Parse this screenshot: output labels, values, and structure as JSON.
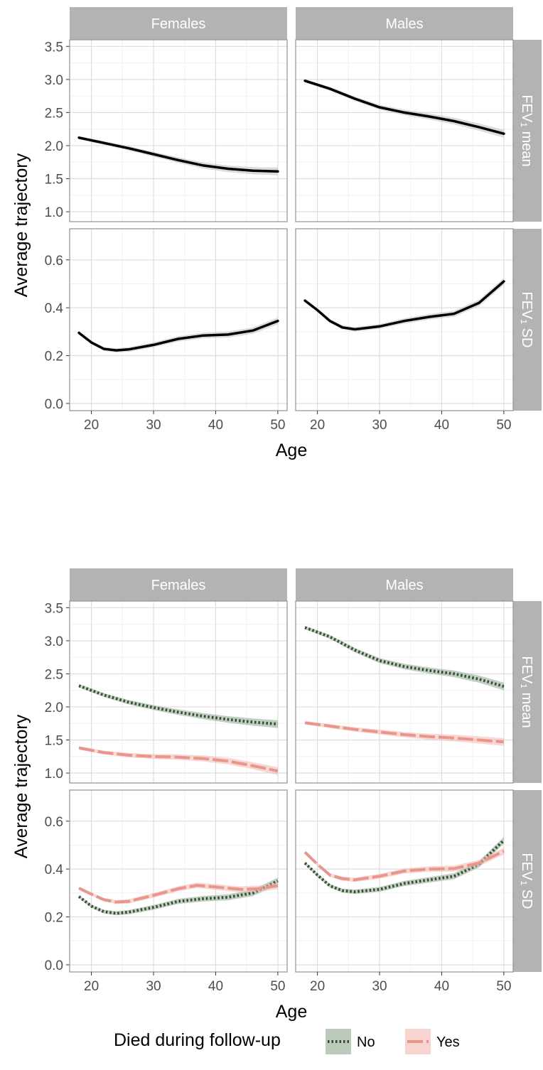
{
  "chart_data": [
    {
      "type": "line",
      "facet_columns": [
        "Females",
        "Males"
      ],
      "facet_rows": [
        "FEV₁ mean",
        "FEV₁ SD"
      ],
      "xlabel": "Age",
      "ylabel": "Average trajectory",
      "x_ticks": [
        20,
        30,
        40,
        50
      ],
      "xlim": [
        16.5,
        51.5
      ],
      "rows": [
        {
          "label": "FEV₁ mean",
          "ylim": [
            0.85,
            3.6
          ],
          "y_ticks": [
            1.0,
            1.5,
            2.0,
            2.5,
            3.0,
            3.5
          ],
          "y_tick_labels": [
            "1.0",
            "1.5",
            "2.0",
            "2.5",
            "3.0",
            "3.5"
          ]
        },
        {
          "label": "FEV₁ SD",
          "ylim": [
            -0.03,
            0.73
          ],
          "y_ticks": [
            0.0,
            0.2,
            0.4,
            0.6
          ],
          "y_tick_labels": [
            "0.0",
            "0.2",
            "0.4",
            "0.6"
          ]
        }
      ],
      "panels": [
        {
          "col": 0,
          "row": 0,
          "series": [
            {
              "style": "solid",
              "color": "#000000",
              "points": [
                [
                  18,
                  2.12
                ],
                [
                  22,
                  2.04
                ],
                [
                  26,
                  1.96
                ],
                [
                  30,
                  1.87
                ],
                [
                  34,
                  1.78
                ],
                [
                  38,
                  1.7
                ],
                [
                  42,
                  1.65
                ],
                [
                  46,
                  1.62
                ],
                [
                  50,
                  1.61
                ]
              ]
            }
          ]
        },
        {
          "col": 1,
          "row": 0,
          "series": [
            {
              "style": "solid",
              "color": "#000000",
              "points": [
                [
                  18,
                  2.98
                ],
                [
                  22,
                  2.86
                ],
                [
                  26,
                  2.71
                ],
                [
                  30,
                  2.58
                ],
                [
                  34,
                  2.5
                ],
                [
                  38,
                  2.44
                ],
                [
                  42,
                  2.37
                ],
                [
                  46,
                  2.28
                ],
                [
                  50,
                  2.18
                ]
              ]
            }
          ]
        },
        {
          "col": 0,
          "row": 1,
          "series": [
            {
              "style": "solid",
              "color": "#000000",
              "points": [
                [
                  18,
                  0.295
                ],
                [
                  20,
                  0.255
                ],
                [
                  22,
                  0.228
                ],
                [
                  24,
                  0.222
                ],
                [
                  26,
                  0.226
                ],
                [
                  30,
                  0.245
                ],
                [
                  34,
                  0.27
                ],
                [
                  38,
                  0.284
                ],
                [
                  42,
                  0.288
                ],
                [
                  46,
                  0.305
                ],
                [
                  50,
                  0.345
                ]
              ]
            }
          ]
        },
        {
          "col": 1,
          "row": 1,
          "series": [
            {
              "style": "solid",
              "color": "#000000",
              "points": [
                [
                  18,
                  0.43
                ],
                [
                  20,
                  0.39
                ],
                [
                  22,
                  0.345
                ],
                [
                  24,
                  0.318
                ],
                [
                  26,
                  0.31
                ],
                [
                  30,
                  0.322
                ],
                [
                  34,
                  0.345
                ],
                [
                  38,
                  0.362
                ],
                [
                  42,
                  0.375
                ],
                [
                  46,
                  0.42
                ],
                [
                  50,
                  0.51
                ]
              ]
            }
          ]
        }
      ]
    },
    {
      "type": "line",
      "facet_columns": [
        "Females",
        "Males"
      ],
      "facet_rows": [
        "FEV₁ mean",
        "FEV₁ SD"
      ],
      "xlabel": "Age",
      "ylabel": "Average trajectory",
      "x_ticks": [
        20,
        30,
        40,
        50
      ],
      "xlim": [
        16.5,
        51.5
      ],
      "legend": {
        "title": "Died during follow-up",
        "position": "bottom"
      },
      "rows": [
        {
          "label": "FEV₁ mean",
          "ylim": [
            0.85,
            3.6
          ],
          "y_ticks": [
            1.0,
            1.5,
            2.0,
            2.5,
            3.0,
            3.5
          ],
          "y_tick_labels": [
            "1.0",
            "1.5",
            "2.0",
            "2.5",
            "3.0",
            "3.5"
          ]
        },
        {
          "label": "FEV₁ SD",
          "ylim": [
            -0.03,
            0.73
          ],
          "y_ticks": [
            0.0,
            0.2,
            0.4,
            0.6
          ],
          "y_tick_labels": [
            "0.0",
            "0.2",
            "0.4",
            "0.6"
          ]
        }
      ],
      "series_styles": [
        {
          "name": "No",
          "style": "dotted",
          "color": "#2f4f2f",
          "band_color": "#8fa68f"
        },
        {
          "name": "Yes",
          "style": "longdash",
          "color": "#e8968c",
          "band_color": "#f2b8b0"
        }
      ],
      "panels": [
        {
          "col": 0,
          "row": 0,
          "series": [
            {
              "name": "No",
              "points": [
                [
                  18,
                  2.32
                ],
                [
                  22,
                  2.18
                ],
                [
                  26,
                  2.07
                ],
                [
                  30,
                  1.99
                ],
                [
                  34,
                  1.92
                ],
                [
                  38,
                  1.86
                ],
                [
                  42,
                  1.81
                ],
                [
                  46,
                  1.77
                ],
                [
                  50,
                  1.74
                ]
              ]
            },
            {
              "name": "Yes",
              "points": [
                [
                  18,
                  1.38
                ],
                [
                  22,
                  1.31
                ],
                [
                  26,
                  1.27
                ],
                [
                  30,
                  1.25
                ],
                [
                  34,
                  1.24
                ],
                [
                  38,
                  1.22
                ],
                [
                  42,
                  1.18
                ],
                [
                  46,
                  1.11
                ],
                [
                  50,
                  1.03
                ]
              ]
            }
          ]
        },
        {
          "col": 1,
          "row": 0,
          "series": [
            {
              "name": "No",
              "points": [
                [
                  18,
                  3.2
                ],
                [
                  22,
                  3.06
                ],
                [
                  26,
                  2.86
                ],
                [
                  30,
                  2.7
                ],
                [
                  34,
                  2.61
                ],
                [
                  38,
                  2.55
                ],
                [
                  42,
                  2.5
                ],
                [
                  46,
                  2.42
                ],
                [
                  50,
                  2.31
                ]
              ]
            },
            {
              "name": "Yes",
              "points": [
                [
                  18,
                  1.76
                ],
                [
                  22,
                  1.71
                ],
                [
                  26,
                  1.66
                ],
                [
                  30,
                  1.62
                ],
                [
                  34,
                  1.58
                ],
                [
                  38,
                  1.55
                ],
                [
                  42,
                  1.53
                ],
                [
                  46,
                  1.5
                ],
                [
                  50,
                  1.47
                ]
              ]
            }
          ]
        },
        {
          "col": 0,
          "row": 1,
          "series": [
            {
              "name": "No",
              "points": [
                [
                  18,
                  0.285
                ],
                [
                  20,
                  0.245
                ],
                [
                  22,
                  0.222
                ],
                [
                  24,
                  0.215
                ],
                [
                  26,
                  0.22
                ],
                [
                  30,
                  0.24
                ],
                [
                  34,
                  0.265
                ],
                [
                  38,
                  0.276
                ],
                [
                  42,
                  0.282
                ],
                [
                  46,
                  0.3
                ],
                [
                  50,
                  0.35
                ]
              ]
            },
            {
              "name": "Yes",
              "points": [
                [
                  18,
                  0.32
                ],
                [
                  20,
                  0.295
                ],
                [
                  22,
                  0.272
                ],
                [
                  24,
                  0.262
                ],
                [
                  26,
                  0.265
                ],
                [
                  30,
                  0.29
                ],
                [
                  34,
                  0.318
                ],
                [
                  37,
                  0.332
                ],
                [
                  40,
                  0.325
                ],
                [
                  44,
                  0.315
                ],
                [
                  47,
                  0.318
                ],
                [
                  50,
                  0.33
                ]
              ]
            }
          ]
        },
        {
          "col": 1,
          "row": 1,
          "series": [
            {
              "name": "No",
              "points": [
                [
                  18,
                  0.425
                ],
                [
                  20,
                  0.375
                ],
                [
                  22,
                  0.33
                ],
                [
                  24,
                  0.31
                ],
                [
                  26,
                  0.305
                ],
                [
                  30,
                  0.315
                ],
                [
                  34,
                  0.34
                ],
                [
                  38,
                  0.355
                ],
                [
                  42,
                  0.37
                ],
                [
                  46,
                  0.42
                ],
                [
                  50,
                  0.52
                ]
              ]
            },
            {
              "name": "Yes",
              "points": [
                [
                  18,
                  0.47
                ],
                [
                  20,
                  0.42
                ],
                [
                  22,
                  0.375
                ],
                [
                  24,
                  0.36
                ],
                [
                  26,
                  0.355
                ],
                [
                  30,
                  0.37
                ],
                [
                  34,
                  0.392
                ],
                [
                  38,
                  0.4
                ],
                [
                  42,
                  0.402
                ],
                [
                  46,
                  0.425
                ],
                [
                  50,
                  0.475
                ]
              ]
            }
          ]
        }
      ]
    }
  ]
}
